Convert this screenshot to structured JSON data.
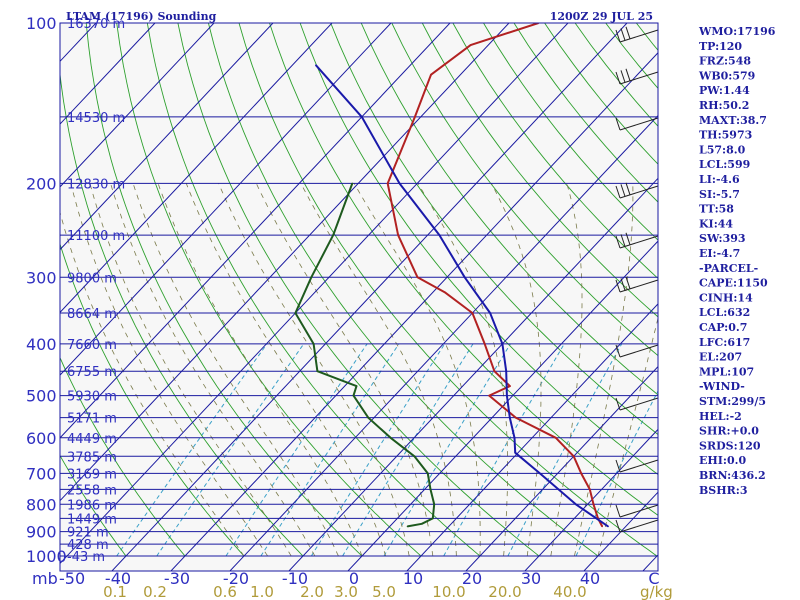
{
  "header": {
    "station": "LTAM (17196) Sounding",
    "time": "1200Z 29 JUL 25"
  },
  "chart_data": {
    "type": "line",
    "title": "LTAM (17196) Sounding",
    "subtitle": "1200Z 29 JUL 25",
    "x_axis": {
      "corner_label": "mb",
      "ticks": [
        "-50",
        "-40",
        "-30",
        "-20",
        "-10",
        "0",
        "10",
        "20",
        "30",
        "40",
        "C"
      ],
      "values": [
        -50,
        -40,
        -30,
        -20,
        -10,
        0,
        10,
        20,
        30,
        40
      ],
      "unit": "C"
    },
    "y_axis": {
      "ticks": [
        "100",
        "200",
        "300",
        "400",
        "500",
        "600",
        "700",
        "800",
        "900",
        "1000"
      ],
      "values": [
        100,
        200,
        300,
        400,
        500,
        600,
        700,
        800,
        900,
        1000
      ],
      "scale": "log-pressure",
      "ylim": [
        1000,
        100
      ]
    },
    "mixing_ratio_axis": {
      "ticks": [
        "0.1",
        "0.2",
        "0.6",
        "1.0",
        "2.0",
        "3.0",
        "5.0",
        "10.0",
        "20.0",
        "40.0"
      ],
      "unit": "g/kg"
    },
    "height_labels": [
      {
        "text": "16370 m",
        "p": 100
      },
      {
        "text": "14530 m",
        "p": 150
      },
      {
        "text": "12830 m",
        "p": 200
      },
      {
        "text": "11100 m",
        "p": 250
      },
      {
        "text": "9800 m",
        "p": 300
      },
      {
        "text": "8664 m",
        "p": 350
      },
      {
        "text": "7660 m",
        "p": 400
      },
      {
        "text": "6755 m",
        "p": 450
      },
      {
        "text": "5930 m",
        "p": 500
      },
      {
        "text": "5171 m",
        "p": 550
      },
      {
        "text": "4449 m",
        "p": 600
      },
      {
        "text": "3785 m",
        "p": 650
      },
      {
        "text": "3169 m",
        "p": 700
      },
      {
        "text": "2558 m",
        "p": 750
      },
      {
        "text": "1986 m",
        "p": 800
      },
      {
        "text": "1449 m",
        "p": 850
      },
      {
        "text": "921 m",
        "p": 900
      },
      {
        "text": "428 m",
        "p": 950
      },
      {
        "text": "-43 m",
        "p": 1000
      }
    ],
    "series": [
      {
        "id": "temperature",
        "color": "#b22222",
        "points": [
          [
            100,
            -55
          ],
          [
            110,
            -63
          ],
          [
            125,
            -65
          ],
          [
            150,
            -61
          ],
          [
            200,
            -55
          ],
          [
            250,
            -45
          ],
          [
            300,
            -35
          ],
          [
            320,
            -28
          ],
          [
            350,
            -20
          ],
          [
            400,
            -13
          ],
          [
            450,
            -7
          ],
          [
            480,
            -2
          ],
          [
            500,
            -4
          ],
          [
            550,
            4
          ],
          [
            600,
            14
          ],
          [
            650,
            20
          ],
          [
            700,
            24
          ],
          [
            750,
            28
          ],
          [
            800,
            31
          ],
          [
            850,
            34
          ],
          [
            880,
            36
          ]
        ]
      },
      {
        "id": "dewpoint",
        "color": "#1e5a1e",
        "points": [
          [
            200,
            -61
          ],
          [
            250,
            -56
          ],
          [
            300,
            -53
          ],
          [
            350,
            -50
          ],
          [
            400,
            -42
          ],
          [
            450,
            -37
          ],
          [
            480,
            -28
          ],
          [
            500,
            -27
          ],
          [
            550,
            -21
          ],
          [
            600,
            -14
          ],
          [
            650,
            -7
          ],
          [
            700,
            -2
          ],
          [
            750,
            1
          ],
          [
            800,
            4
          ],
          [
            850,
            6
          ],
          [
            870,
            5
          ],
          [
            880,
            3
          ]
        ]
      },
      {
        "id": "parcel",
        "color": "#1a1aaa",
        "points": [
          [
            120,
            -86
          ],
          [
            150,
            -70
          ],
          [
            200,
            -53
          ],
          [
            250,
            -38
          ],
          [
            300,
            -27
          ],
          [
            350,
            -17
          ],
          [
            400,
            -10
          ],
          [
            450,
            -5
          ],
          [
            500,
            -1
          ],
          [
            550,
            3
          ],
          [
            600,
            7
          ],
          [
            640,
            9.5
          ],
          [
            700,
            17
          ],
          [
            800,
            28
          ],
          [
            880,
            37
          ]
        ]
      }
    ]
  },
  "stats": [
    "WMO:17196",
    "TP:120",
    "FRZ:548",
    "WB0:579",
    "PW:1.44",
    "RH:50.2",
    "MAXT:38.7",
    "TH:5973",
    "L57:8.0",
    "LCL:599",
    "LI:-4.6",
    "SI:-5.7",
    "TT:58",
    "KI:44",
    "SW:393",
    "EI:-4.7",
    "-PARCEL-",
    "CAPE:1150",
    "CINH:14",
    "LCL:632",
    "CAP:0.7",
    "LFC:617",
    "EL:207",
    "MPL:107",
    "-WIND-",
    "STM:299/5",
    "HEL:-2",
    "SHR:+0.0",
    "SRDS:120",
    "EHI:0.0",
    "BRN:436.2",
    "BSHR:3"
  ],
  "colors": {
    "isobar": "#1a1aa0",
    "isotherm": "#1a1aa0",
    "dry_adiabat": "#2ea02e",
    "moist_adiabat": "#7a7a4a",
    "mixing_ratio": "#3aa0c8",
    "text": "#1f1f9f",
    "mix_label": "#b09b3a"
  }
}
